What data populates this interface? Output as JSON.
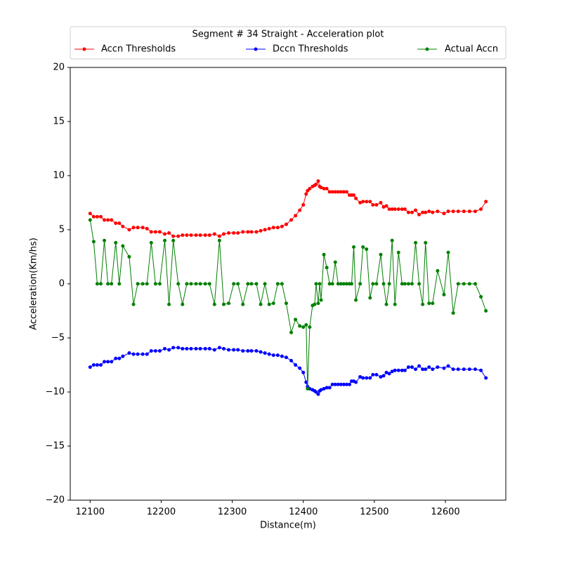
{
  "chart_data": {
    "type": "line",
    "legend_title": "Segment # 34 Straight - Acceleration plot",
    "x_label": "Distance(m)",
    "y_label": "Acceleration(Km/hs)",
    "legend_position": "top",
    "x": [
      12100,
      12105,
      12110,
      12115,
      12120,
      12125,
      12130,
      12136,
      12141,
      12146,
      12155,
      12161,
      12167,
      12174,
      12180,
      12186,
      12192,
      12198,
      12205,
      12211,
      12217,
      12224,
      12230,
      12236,
      12242,
      12249,
      12255,
      12262,
      12268,
      12275,
      12282,
      12288,
      12295,
      12302,
      12308,
      12315,
      12322,
      12327,
      12334,
      12340,
      12346,
      12352,
      12358,
      12364,
      12370,
      12376,
      12383,
      12389,
      12395,
      12400,
      12404,
      12406,
      12409,
      12413,
      12416,
      12418,
      12421,
      12423,
      12425,
      12429,
      12433,
      12437,
      12441,
      12445,
      12449,
      12453,
      12457,
      12461,
      12465,
      12468,
      12471,
      12474,
      12480,
      12484,
      12489,
      12494,
      12498,
      12503,
      12509,
      12513,
      12517,
      12521,
      12525,
      12529,
      12534,
      12539,
      12543,
      12548,
      12553,
      12558,
      12563,
      12568,
      12572,
      12577,
      12582,
      12589,
      12598,
      12604,
      12611,
      12618,
      12626,
      12634,
      12642,
      12650,
      12657
    ],
    "series": [
      {
        "name": "Accn Thresholds",
        "color": "#ff0000",
        "values": [
          6.5,
          6.2,
          6.2,
          6.2,
          5.9,
          5.9,
          5.9,
          5.6,
          5.6,
          5.3,
          5.0,
          5.2,
          5.2,
          5.2,
          5.1,
          4.8,
          4.8,
          4.8,
          4.6,
          4.7,
          4.4,
          4.4,
          4.5,
          4.5,
          4.5,
          4.5,
          4.5,
          4.5,
          4.5,
          4.6,
          4.4,
          4.6,
          4.7,
          4.7,
          4.7,
          4.8,
          4.8,
          4.8,
          4.8,
          4.9,
          5.0,
          5.1,
          5.2,
          5.2,
          5.3,
          5.5,
          5.9,
          6.3,
          6.8,
          7.3,
          8.3,
          8.6,
          8.8,
          9.0,
          9.1,
          9.2,
          9.5,
          9.0,
          8.9,
          8.8,
          8.8,
          8.5,
          8.5,
          8.5,
          8.5,
          8.5,
          8.5,
          8.5,
          8.2,
          8.2,
          8.2,
          7.9,
          7.5,
          7.6,
          7.6,
          7.6,
          7.3,
          7.3,
          7.5,
          7.1,
          7.2,
          6.9,
          6.9,
          6.9,
          6.9,
          6.9,
          6.9,
          6.6,
          6.6,
          6.8,
          6.4,
          6.6,
          6.6,
          6.7,
          6.6,
          6.7,
          6.5,
          6.7,
          6.7,
          6.7,
          6.7,
          6.7,
          6.7,
          6.9,
          7.6
        ]
      },
      {
        "name": "Dccn Thresholds",
        "color": "#0000ff",
        "values": [
          -7.7,
          -7.5,
          -7.5,
          -7.5,
          -7.2,
          -7.2,
          -7.2,
          -6.9,
          -6.9,
          -6.7,
          -6.4,
          -6.5,
          -6.5,
          -6.5,
          -6.5,
          -6.2,
          -6.2,
          -6.2,
          -6.0,
          -6.1,
          -5.9,
          -5.9,
          -6.0,
          -6.0,
          -6.0,
          -6.0,
          -6.0,
          -6.0,
          -6.0,
          -6.1,
          -5.9,
          -6.0,
          -6.1,
          -6.1,
          -6.1,
          -6.2,
          -6.2,
          -6.2,
          -6.2,
          -6.3,
          -6.4,
          -6.5,
          -6.6,
          -6.6,
          -6.7,
          -6.8,
          -7.1,
          -7.5,
          -7.8,
          -8.2,
          -9.1,
          -9.5,
          -9.7,
          -9.8,
          -9.9,
          -10.0,
          -10.2,
          -9.9,
          -9.8,
          -9.7,
          -9.6,
          -9.6,
          -9.3,
          -9.3,
          -9.3,
          -9.3,
          -9.3,
          -9.3,
          -9.3,
          -9.0,
          -9.0,
          -9.1,
          -8.6,
          -8.7,
          -8.7,
          -8.7,
          -8.4,
          -8.4,
          -8.6,
          -8.5,
          -8.2,
          -8.3,
          -8.1,
          -8.0,
          -8.0,
          -8.0,
          -8.0,
          -7.7,
          -7.7,
          -7.9,
          -7.6,
          -7.9,
          -7.9,
          -7.7,
          -7.9,
          -7.7,
          -7.8,
          -7.6,
          -7.9,
          -7.9,
          -7.9,
          -7.9,
          -7.9,
          -8.0,
          -8.7
        ]
      },
      {
        "name": "Actual Accn",
        "color": "#008000",
        "values": [
          5.9,
          3.9,
          0,
          0,
          4.0,
          0,
          0,
          3.8,
          0,
          3.5,
          2.5,
          -1.9,
          0,
          0,
          0,
          3.8,
          0,
          0,
          4.0,
          -1.9,
          4.0,
          0,
          -1.9,
          0,
          0,
          0,
          0,
          0,
          0,
          -1.9,
          4.0,
          -1.9,
          -1.8,
          0,
          0,
          -1.9,
          0,
          0,
          0,
          -1.9,
          0,
          -1.9,
          -1.8,
          0,
          0,
          -1.8,
          -4.5,
          -3.3,
          -3.9,
          -4.0,
          -3.8,
          -9.7,
          -4.0,
          -2.0,
          -1.9,
          0,
          -1.8,
          0,
          -1.5,
          2.7,
          1.5,
          0,
          0,
          2.0,
          0,
          0,
          0,
          0,
          0,
          0,
          3.4,
          -1.5,
          0,
          3.4,
          3.2,
          -1.3,
          0,
          0,
          2.7,
          0,
          -1.9,
          0,
          4.0,
          -1.9,
          2.9,
          0,
          0,
          0,
          0,
          3.8,
          0,
          -1.9,
          3.8,
          -1.8,
          -1.8,
          1.2,
          -1.0,
          2.9,
          -2.7,
          0,
          0,
          0,
          0,
          -1.2,
          -2.5
        ]
      }
    ],
    "xlim": [
      12072,
      12685
    ],
    "xticks": [
      12100,
      12200,
      12300,
      12400,
      12500,
      12600
    ],
    "ylim": [
      -20,
      20
    ],
    "yticks": [
      {
        "value": -20,
        "label": "−20"
      },
      {
        "value": -15,
        "label": "−15"
      },
      {
        "value": -10,
        "label": "−10"
      },
      {
        "value": -5,
        "label": "−5"
      },
      0,
      5,
      10,
      15,
      20
    ],
    "grid": false
  }
}
